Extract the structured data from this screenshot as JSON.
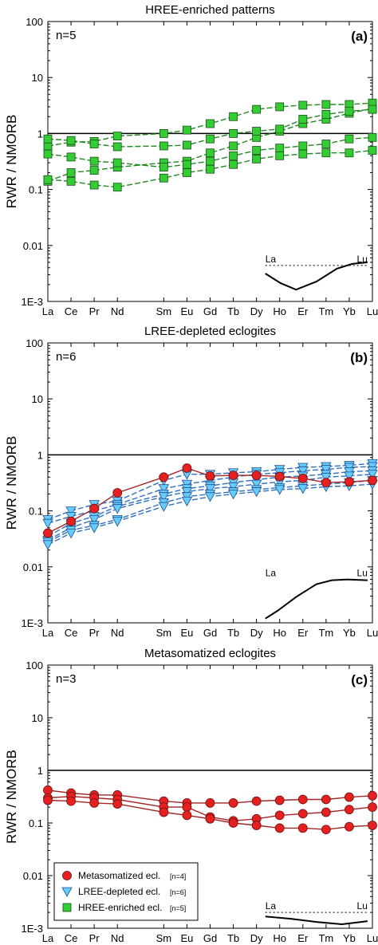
{
  "chart_data": [
    {
      "type": "line",
      "title": "HREE-enriched patterns",
      "panel_label": "(a)",
      "n_label": "n=5",
      "ylabel": "RWR / NMORB",
      "yscale": "log",
      "ylim": [
        0.001,
        100
      ],
      "y_tick_labels": [
        "1E-3",
        "0.01",
        "0.1",
        "1",
        "10",
        "100"
      ],
      "categories": [
        "La",
        "Ce",
        "Pr",
        "Nd",
        "Sm",
        "Eu",
        "Gd",
        "Tb",
        "Dy",
        "Ho",
        "Er",
        "Tm",
        "Yb",
        "Lu"
      ],
      "x_positions": [
        0,
        1,
        2,
        3,
        5,
        6,
        7,
        8,
        9,
        10,
        11,
        12,
        13,
        14
      ],
      "reference_line": 1,
      "series": [
        {
          "group": "HREE-enriched",
          "marker": "square",
          "values": [
            0.14,
            0.2,
            0.22,
            0.25,
            0.3,
            0.32,
            0.45,
            0.6,
            0.85,
            1.1,
            1.5,
            1.8,
            2.3,
            2.8
          ]
        },
        {
          "group": "HREE-enriched",
          "marker": "square",
          "values": [
            0.6,
            0.7,
            0.72,
            0.9,
            1.0,
            1.15,
            1.5,
            2.0,
            2.7,
            3.0,
            3.2,
            3.3,
            3.3,
            3.5
          ]
        },
        {
          "group": "HREE-enriched",
          "marker": "square",
          "values": [
            0.43,
            0.38,
            0.32,
            0.3,
            0.25,
            0.28,
            0.32,
            0.4,
            0.5,
            0.55,
            0.6,
            0.65,
            0.8,
            0.85
          ]
        },
        {
          "group": "HREE-enriched",
          "marker": "square",
          "values": [
            0.15,
            0.14,
            0.12,
            0.11,
            0.16,
            0.2,
            0.23,
            0.28,
            0.35,
            0.4,
            0.43,
            0.45,
            0.45,
            0.5
          ]
        },
        {
          "group": "HREE-enriched",
          "marker": "square",
          "values": [
            0.8,
            0.75,
            0.65,
            0.58,
            0.6,
            0.62,
            0.8,
            1.0,
            1.1,
            1.2,
            1.8,
            2.2,
            2.5,
            2.7
          ]
        }
      ],
      "inset": {
        "start_label": "La",
        "end_label": "Lu",
        "dotted_baseline": true
      }
    },
    {
      "type": "line",
      "title": "LREE-depleted eclogites",
      "panel_label": "(b)",
      "n_label": "n=6",
      "ylabel": "RWR / NMORB",
      "yscale": "log",
      "ylim": [
        0.001,
        100
      ],
      "y_tick_labels": [
        "1E-3",
        "0.01",
        "0.1",
        "1",
        "10",
        "100"
      ],
      "categories": [
        "La",
        "Ce",
        "Pr",
        "Nd",
        "Sm",
        "Eu",
        "Gd",
        "Tb",
        "Dy",
        "Ho",
        "Er",
        "Tm",
        "Yb",
        "Lu"
      ],
      "x_positions": [
        0,
        1,
        2,
        3,
        5,
        6,
        7,
        8,
        9,
        10,
        11,
        12,
        13,
        14
      ],
      "reference_line": 1,
      "series": [
        {
          "group": "LREE-depleted",
          "marker": "triangle",
          "values": [
            0.07,
            0.1,
            0.13,
            0.15,
            0.35,
            0.45,
            0.45,
            0.48,
            0.5,
            0.55,
            0.6,
            0.62,
            0.65,
            0.7
          ]
        },
        {
          "group": "LREE-depleted",
          "marker": "triangle",
          "values": [
            0.06,
            0.08,
            0.1,
            0.13,
            0.25,
            0.3,
            0.35,
            0.4,
            0.45,
            0.48,
            0.52,
            0.55,
            0.6,
            0.62
          ]
        },
        {
          "group": "LREE-depleted",
          "marker": "triangle",
          "values": [
            0.035,
            0.06,
            0.08,
            0.12,
            0.2,
            0.25,
            0.28,
            0.32,
            0.36,
            0.4,
            0.42,
            0.45,
            0.5,
            0.52
          ]
        },
        {
          "group": "LREE-depleted",
          "marker": "triangle",
          "values": [
            0.03,
            0.05,
            0.07,
            0.11,
            0.18,
            0.22,
            0.25,
            0.27,
            0.3,
            0.33,
            0.35,
            0.4,
            0.42,
            0.45
          ]
        },
        {
          "group": "LREE-depleted",
          "marker": "triangle",
          "values": [
            0.028,
            0.045,
            0.055,
            0.07,
            0.14,
            0.18,
            0.2,
            0.22,
            0.24,
            0.26,
            0.28,
            0.3,
            0.32,
            0.35
          ]
        },
        {
          "group": "LREE-depleted",
          "marker": "triangle",
          "values": [
            0.025,
            0.04,
            0.05,
            0.065,
            0.12,
            0.15,
            0.18,
            0.2,
            0.22,
            0.24,
            0.25,
            0.27,
            0.28,
            0.3
          ]
        },
        {
          "group": "Metasomatized",
          "marker": "circle",
          "values": [
            0.04,
            0.065,
            0.11,
            0.21,
            0.4,
            0.58,
            0.42,
            0.43,
            0.43,
            0.41,
            0.38,
            0.32,
            0.33,
            0.35
          ]
        }
      ],
      "inset": {
        "start_label": "La",
        "end_label": "Lu",
        "dotted_baseline": false
      }
    },
    {
      "type": "line",
      "title": "Metasomatized eclogites",
      "panel_label": "(c)",
      "n_label": "n=3",
      "ylabel": "RWR / NMORB",
      "yscale": "log",
      "ylim": [
        0.001,
        100
      ],
      "y_tick_labels": [
        "1E-3",
        "0.01",
        "0.1",
        "1",
        "10",
        "100"
      ],
      "categories": [
        "La",
        "Ce",
        "Pr",
        "Nd",
        "Sm",
        "Eu",
        "Gd",
        "Tb",
        "Dy",
        "Ho",
        "Er",
        "Tm",
        "Yb",
        "Lu"
      ],
      "x_positions": [
        0,
        1,
        2,
        3,
        5,
        6,
        7,
        8,
        9,
        10,
        11,
        12,
        13,
        14
      ],
      "reference_line": 1,
      "series": [
        {
          "group": "Metasomatized",
          "marker": "circle",
          "values": [
            0.42,
            0.37,
            0.34,
            0.34,
            0.26,
            0.24,
            0.24,
            0.24,
            0.26,
            0.27,
            0.28,
            0.28,
            0.31,
            0.33
          ]
        },
        {
          "group": "Metasomatized",
          "marker": "circle",
          "values": [
            0.3,
            0.32,
            0.3,
            0.28,
            0.2,
            0.2,
            0.13,
            0.11,
            0.12,
            0.14,
            0.15,
            0.16,
            0.18,
            0.2
          ]
        },
        {
          "group": "Metasomatized",
          "marker": "circle",
          "values": [
            0.27,
            0.26,
            0.24,
            0.23,
            0.16,
            0.14,
            0.12,
            0.1,
            0.09,
            0.08,
            0.08,
            0.075,
            0.085,
            0.09
          ]
        }
      ],
      "legend": {
        "placement": "bottom-left",
        "entries": [
          {
            "label": "Metasomatized ecl.",
            "count": "[n=4]",
            "marker": "circle"
          },
          {
            "label": "LREE-depleted ecl.",
            "count": "[n=6]",
            "marker": "triangle"
          },
          {
            "label": "HREE-enriched ecl.",
            "count": "[n=5]",
            "marker": "square"
          }
        ]
      },
      "inset": {
        "start_label": "La",
        "end_label": "Lu",
        "dotted_baseline": true
      }
    }
  ],
  "colors": {
    "hree_fill": "#33cc33",
    "hree_line": "#1f8a1f",
    "lree_fill": "#66ccff",
    "lree_line": "#2f6fc4",
    "meta_fill": "#e62020",
    "meta_line": "#a32525",
    "axis": "#000000"
  }
}
